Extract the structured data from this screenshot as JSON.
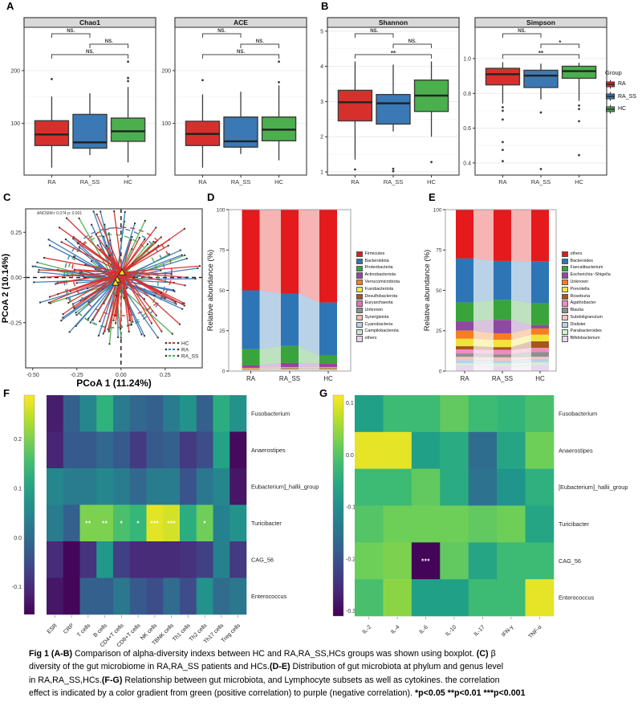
{
  "panels": {
    "a": "A",
    "b": "B",
    "c": "C",
    "d": "D",
    "e": "E",
    "f": "F",
    "g": "G"
  },
  "legend_group": {
    "title": "Group",
    "items": [
      {
        "label": "RA",
        "color": "#d7302c"
      },
      {
        "label": "RA_SS",
        "color": "#3a79b5"
      },
      {
        "label": "HC",
        "color": "#4caf4e"
      }
    ]
  },
  "chart_data": [
    {
      "id": "chao1",
      "type": "boxplot",
      "title": "Chao1",
      "categories": [
        "RA",
        "RA_SS",
        "HC"
      ],
      "group_colors": [
        "#d7302c",
        "#3a79b5",
        "#4caf4e"
      ],
      "ylim": [
        2,
        282
      ],
      "yticks": [
        {
          "v": 100,
          "label": "100"
        },
        {
          "v": 200,
          "label": "200"
        }
      ],
      "boxes": [
        {
          "low": 16,
          "q1": 58,
          "med": 79,
          "q3": 105,
          "high": 151,
          "outliers": [
            184
          ]
        },
        {
          "low": 40,
          "q1": 53,
          "med": 64,
          "q3": 117,
          "high": 157,
          "outliers": []
        },
        {
          "low": 26,
          "q1": 66,
          "med": 85,
          "q3": 110,
          "high": 169,
          "outliers": [
            180,
            186,
            217
          ]
        }
      ],
      "brackets": [
        {
          "a": 0,
          "b": 1,
          "label": "NS."
        },
        {
          "a": 1,
          "b": 2,
          "label": "NS."
        },
        {
          "a": 0,
          "b": 2,
          "label": "NS."
        }
      ]
    },
    {
      "id": "ace",
      "type": "boxplot",
      "title": "ACE",
      "categories": [
        "RA",
        "RA_SS",
        "HC"
      ],
      "group_colors": [
        "#d7302c",
        "#3a79b5",
        "#4caf4e"
      ],
      "ylim": [
        2,
        282
      ],
      "yticks": [
        {
          "v": 100,
          "label": "100"
        },
        {
          "v": 200,
          "label": "200"
        }
      ],
      "boxes": [
        {
          "low": 16,
          "q1": 58,
          "med": 80,
          "q3": 104,
          "high": 155,
          "outliers": [
            182
          ]
        },
        {
          "low": 42,
          "q1": 55,
          "med": 66,
          "q3": 112,
          "high": 160,
          "outliers": []
        },
        {
          "low": 30,
          "q1": 67,
          "med": 88,
          "q3": 112,
          "high": 172,
          "outliers": [
            178,
            217
          ]
        }
      ],
      "brackets": [
        {
          "a": 0,
          "b": 1,
          "label": "NS."
        },
        {
          "a": 1,
          "b": 2,
          "label": "NS."
        },
        {
          "a": 0,
          "b": 2,
          "label": "NS."
        }
      ]
    },
    {
      "id": "shannon",
      "type": "boxplot",
      "title": "Shannon",
      "categories": [
        "RA",
        "RA_SS",
        "HC"
      ],
      "group_colors": [
        "#d7302c",
        "#3a79b5",
        "#4caf4e"
      ],
      "ylim": [
        0.91,
        5.11
      ],
      "yticks": [
        {
          "v": 1,
          "label": "1"
        },
        {
          "v": 2,
          "label": "2"
        },
        {
          "v": 3,
          "label": "3"
        },
        {
          "v": 4,
          "label": "4"
        },
        {
          "v": 5,
          "label": "5"
        }
      ],
      "boxes": [
        {
          "low": 1.35,
          "q1": 2.45,
          "med": 2.98,
          "q3": 3.32,
          "high": 4.14,
          "outliers": [
            1.07
          ]
        },
        {
          "low": 2.15,
          "q1": 2.36,
          "med": 2.95,
          "q3": 3.2,
          "high": 4.05,
          "outliers": [
            1.09,
            1.02
          ]
        },
        {
          "low": 2.0,
          "q1": 2.72,
          "med": 3.17,
          "q3": 3.61,
          "high": 4.14,
          "outliers": [
            1.28
          ]
        }
      ],
      "brackets": [
        {
          "a": 0,
          "b": 1,
          "label": "NS."
        },
        {
          "a": 1,
          "b": 2,
          "label": "NS."
        },
        {
          "a": 0,
          "b": 2,
          "label": "**"
        }
      ]
    },
    {
      "id": "simpson",
      "type": "boxplot",
      "title": "Simpson",
      "categories": [
        "RA",
        "RA_SS",
        "HC"
      ],
      "group_colors": [
        "#d7302c",
        "#3a79b5",
        "#4caf4e"
      ],
      "ylim": [
        0.33,
        1.18
      ],
      "yticks": [
        {
          "v": 0.4,
          "label": "0.4"
        },
        {
          "v": 0.6,
          "label": "0.6"
        },
        {
          "v": 0.8,
          "label": "0.8"
        },
        {
          "v": 1.0,
          "label": "1.0"
        }
      ],
      "boxes": [
        {
          "low": 0.742,
          "q1": 0.849,
          "med": 0.91,
          "q3": 0.944,
          "high": 0.979,
          "outliers": [
            0.72,
            0.7,
            0.65,
            0.52,
            0.475,
            0.41
          ]
        },
        {
          "low": 0.765,
          "q1": 0.834,
          "med": 0.902,
          "q3": 0.933,
          "high": 0.971,
          "outliers": [
            0.69,
            0.365
          ]
        },
        {
          "low": 0.757,
          "q1": 0.887,
          "med": 0.928,
          "q3": 0.956,
          "high": 0.976,
          "outliers": [
            0.73,
            0.71,
            0.64,
            0.445
          ]
        }
      ],
      "brackets": [
        {
          "a": 0,
          "b": 1,
          "label": "NS."
        },
        {
          "a": 1,
          "b": 2,
          "label": "*"
        },
        {
          "a": 0,
          "b": 2,
          "label": "**"
        }
      ]
    },
    {
      "id": "pcoa",
      "type": "scatter",
      "annotation": "ANOSIM:r 0.074 p: 0.001",
      "xlabel": "PCoA 1 (11.24%)",
      "ylabel": "PCoA 2 (10.14%)",
      "xlim": [
        -0.54,
        0.46
      ],
      "ylim": [
        -0.5,
        0.38
      ],
      "xticks": [
        "-0.50",
        "-0.25",
        "0.00",
        "0.25"
      ],
      "yticks": [
        "0.25",
        "0.00",
        "-0.25"
      ],
      "groups": [
        {
          "name": "HC",
          "color": "#d7302c",
          "n": 70
        },
        {
          "name": "RA",
          "color": "#3a79b5",
          "n": 62
        },
        {
          "name": "RA_SS",
          "color": "#4caf4e",
          "n": 30
        }
      ],
      "centroid_color": "#f5e61e"
    },
    {
      "id": "phylum",
      "type": "stacked-bar",
      "ylabel": "Relative abundance (%)",
      "categories": [
        "RA",
        "RA_SS",
        "HC"
      ],
      "yticks": [
        0,
        25,
        50,
        75,
        100
      ],
      "taxa": [
        {
          "label": "Firmicutes",
          "color": "#e41a1c"
        },
        {
          "label": "Bacteroidota",
          "color": "#2e75b6"
        },
        {
          "label": "Proteobacteria",
          "color": "#39a43c"
        },
        {
          "label": "Actinobacteriota",
          "color": "#9a43a0"
        },
        {
          "label": "Verrucomicrobiota",
          "color": "#f57f20"
        },
        {
          "label": "Fusobacteriota",
          "color": "#f4ec3f"
        },
        {
          "label": "Desulfobacterota",
          "color": "#a6561d"
        },
        {
          "label": "Euryarchaeota",
          "color": "#e570b2"
        },
        {
          "label": "Unknown",
          "color": "#8f8f8f"
        },
        {
          "label": "Synergistota",
          "color": "#f4b8b0"
        },
        {
          "label": "Cyanobacteria",
          "color": "#b8d1e8"
        },
        {
          "label": "Campilobacterota",
          "color": "#cde8c8"
        },
        {
          "label": "others",
          "color": "#e7d4e8"
        }
      ],
      "values": [
        [
          50.0,
          36.5,
          10.0,
          1.5,
          0.3,
          0.2,
          0.2,
          0.2,
          0.3,
          0.2,
          0.2,
          0.2,
          0.2
        ],
        [
          52.0,
          32.5,
          10.5,
          2.5,
          0.4,
          0.3,
          0.3,
          0.2,
          0.3,
          0.2,
          0.2,
          0.3,
          0.3
        ],
        [
          57.5,
          33.0,
          5.0,
          2.0,
          0.4,
          0.3,
          0.3,
          0.2,
          0.4,
          0.2,
          0.2,
          0.2,
          0.3
        ]
      ]
    },
    {
      "id": "genus",
      "type": "stacked-bar",
      "ylabel": "Relative abundance (%)",
      "categories": [
        "RA",
        "RA_SS",
        "HC"
      ],
      "yticks": [
        0,
        25,
        50,
        75,
        100
      ],
      "taxa": [
        {
          "label": "others",
          "color": "#e41a1c"
        },
        {
          "label": "Bacteroides",
          "color": "#2e75b6"
        },
        {
          "label": "Faecalibacterium",
          "color": "#39a43c"
        },
        {
          "label": "Escherichia~Shigella",
          "color": "#8e4a9e"
        },
        {
          "label": "Unknown",
          "color": "#f57f20"
        },
        {
          "label": "Prevotella",
          "color": "#f2e33c"
        },
        {
          "label": "Roseburia",
          "color": "#a6561d"
        },
        {
          "label": "Agathobacter",
          "color": "#ef8cc0"
        },
        {
          "label": "Blautia",
          "color": "#8f8f8f"
        },
        {
          "label": "Subdoligranulum",
          "color": "#f5c4bd"
        },
        {
          "label": "Dialister",
          "color": "#b8d1e8"
        },
        {
          "label": "Parabacteroides",
          "color": "#d4ecd0"
        },
        {
          "label": "Bifidobacterium",
          "color": "#e9d6ee"
        }
      ],
      "values": [
        [
          30.3,
          27.2,
          11.7,
          5.8,
          5.0,
          4.6,
          2.0,
          2.5,
          2.1,
          2.0,
          2.0,
          1.3,
          3.5
        ],
        [
          31.8,
          24.1,
          12.4,
          8.3,
          4.1,
          4.5,
          1.7,
          2.7,
          1.9,
          2.0,
          1.7,
          1.7,
          3.1
        ],
        [
          32.2,
          25.8,
          13.6,
          2.0,
          3.9,
          4.1,
          4.1,
          2.5,
          3.0,
          1.3,
          2.0,
          1.7,
          3.8
        ]
      ]
    },
    {
      "id": "heat_lymph",
      "type": "heatmap",
      "rows": [
        "Fusobacterium",
        "Anaerostipes",
        "Eubacterium]_hallii_group",
        "Turicibacter",
        "CAG_56",
        "Enterococcus"
      ],
      "cols": [
        "ESR",
        "CRP",
        "T cells",
        "B cells",
        "CD4+T cells",
        "CD8+T cells",
        "NK cells",
        "TBNK cells",
        "Th1 cells",
        "Th2 cells",
        "Th17 cells",
        "Treg cells"
      ],
      "vmin": -0.156,
      "vmax": 0.289,
      "cbar_ticks": [
        {
          "v": 0.2,
          "label": "0.2"
        },
        {
          "v": 0.1,
          "label": "0.1"
        },
        {
          "v": 0.0,
          "label": "0.0"
        },
        {
          "v": -0.1,
          "label": "-0.1"
        }
      ],
      "values": [
        [
          -0.12,
          -0.02,
          0.05,
          0.13,
          0.03,
          -0.01,
          -0.02,
          0.03,
          0.07,
          -0.02,
          0.12,
          0.07
        ],
        [
          -0.11,
          -0.03,
          -0.03,
          -0.01,
          -0.03,
          -0.08,
          -0.03,
          -0.02,
          -0.08,
          -0.05,
          0.1,
          -0.145
        ],
        [
          0.05,
          0.03,
          0.03,
          0.05,
          0.03,
          -0.01,
          0.03,
          0.03,
          -0.04,
          0.02,
          0.05,
          -0.13
        ],
        [
          0.03,
          -0.02,
          0.2,
          0.2,
          0.16,
          0.14,
          0.27,
          0.26,
          0.12,
          0.19,
          0.04,
          0.07
        ],
        [
          -0.1,
          -0.15,
          -0.09,
          0.08,
          -0.07,
          -0.1,
          -0.1,
          -0.1,
          -0.09,
          -0.07,
          0.04,
          -0.08
        ],
        [
          -0.13,
          -0.15,
          -0.02,
          -0.02,
          0.02,
          -0.03,
          -0.05,
          0.0,
          -0.05,
          0.07,
          0.0,
          0.02
        ]
      ],
      "sig": [
        {
          "r": 3,
          "c": 2,
          "m": "**"
        },
        {
          "r": 3,
          "c": 3,
          "m": "**"
        },
        {
          "r": 3,
          "c": 4,
          "m": "*"
        },
        {
          "r": 3,
          "c": 5,
          "m": "*"
        },
        {
          "r": 3,
          "c": 6,
          "m": "***"
        },
        {
          "r": 3,
          "c": 7,
          "m": "***"
        },
        {
          "r": 3,
          "c": 9,
          "m": "*"
        }
      ]
    },
    {
      "id": "heat_cyto",
      "type": "heatmap",
      "rows": [
        "Fusobacterium",
        "Anaerostipes",
        "[Eubacterium]_hallii_group",
        "Turicibacter",
        "CAG_56",
        "Enterococcus"
      ],
      "cols": [
        "IL-2",
        "IL-4",
        "IL-6",
        "IL-10",
        "IL-17",
        "IFN-γ",
        "TNF-α"
      ],
      "vmin": -0.31,
      "vmax": 0.115,
      "cbar_ticks": [
        {
          "v": 0.1,
          "label": "0.1"
        },
        {
          "v": 0.0,
          "label": "0.0"
        },
        {
          "v": -0.1,
          "label": "-0.1"
        },
        {
          "v": -0.2,
          "label": "-0.2"
        },
        {
          "v": -0.3,
          "label": "-0.3"
        }
      ],
      "values": [
        [
          -0.07,
          -0.02,
          -0.02,
          0.01,
          -0.02,
          -0.03,
          -0.01
        ],
        [
          0.1,
          0.1,
          -0.07,
          -0.05,
          -0.16,
          -0.06,
          0.02
        ],
        [
          -0.02,
          -0.02,
          0.01,
          -0.05,
          -0.15,
          -0.09,
          -0.04
        ],
        [
          0.0,
          0.02,
          0.02,
          0.02,
          0.01,
          0.02,
          -0.06
        ],
        [
          0.02,
          0.03,
          -0.305,
          0.01,
          -0.06,
          -0.02,
          -0.02
        ],
        [
          -0.01,
          0.04,
          -0.07,
          -0.07,
          -0.02,
          -0.02,
          0.1
        ]
      ],
      "sig": [
        {
          "r": 4,
          "c": 2,
          "m": "***"
        }
      ]
    }
  ],
  "caption": {
    "lines": [
      [
        {
          "b": 1,
          "t": "Fig 1 (A-B)"
        },
        {
          "b": 0,
          "t": " Comparison of alpha-diversity indexs between HC and RA,RA_SS,HCs groups was shown using boxplot. "
        },
        {
          "b": 1,
          "t": "(C)"
        },
        {
          "b": 0,
          "t": " β"
        }
      ],
      [
        {
          "b": 0,
          "t": "diversity of the gut microbiome in RA,RA_SS patients and HCs."
        },
        {
          "b": 1,
          "t": "(D-E)"
        },
        {
          "b": 0,
          "t": " Distribution of gut microbiota at phylum and genus level"
        }
      ],
      [
        {
          "b": 0,
          "t": "in RA,RA_SS,HCs."
        },
        {
          "b": 1,
          "t": "(F-G)"
        },
        {
          "b": 0,
          "t": " Relationship between gut microbiota, and Lymphocyte subsets as well as cytokines. the correlation"
        }
      ],
      [
        {
          "b": 0,
          "t": "effect is indicated by a color gradient from green (positive correlation) to purple (negative correlation). "
        },
        {
          "b": 1,
          "t": "*p<0.05 **p<0.01 ***p<0.001"
        }
      ]
    ]
  }
}
